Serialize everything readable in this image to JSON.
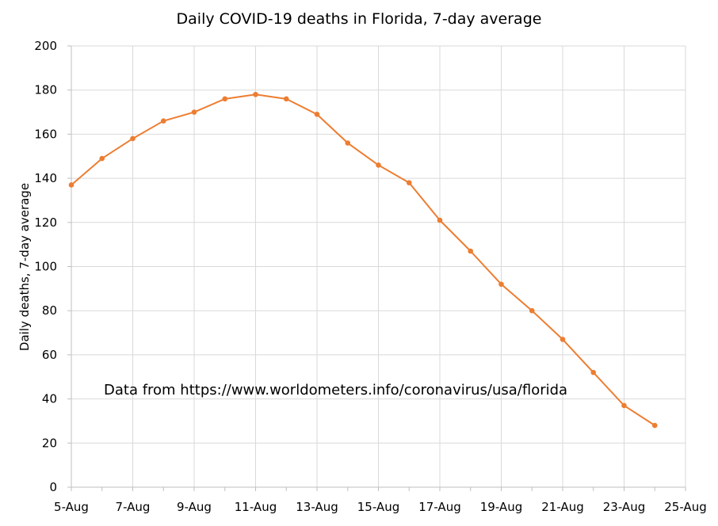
{
  "chart_data": {
    "type": "line",
    "title": "Daily COVID-19 deaths in Florida, 7-day average",
    "xlabel": "",
    "ylabel": "Daily deaths, 7-day average",
    "annotation": "Data from https://www.worldometers.info/coronavirus/usa/florida",
    "x": [
      "5-Aug",
      "6-Aug",
      "7-Aug",
      "8-Aug",
      "9-Aug",
      "10-Aug",
      "11-Aug",
      "12-Aug",
      "13-Aug",
      "14-Aug",
      "15-Aug",
      "16-Aug",
      "17-Aug",
      "18-Aug",
      "19-Aug",
      "20-Aug",
      "21-Aug",
      "22-Aug",
      "23-Aug",
      "24-Aug"
    ],
    "series": [
      {
        "values": [
          137,
          149,
          158,
          166,
          170,
          176,
          178,
          176,
          169,
          156,
          146,
          138,
          121,
          107,
          92,
          80,
          67,
          52,
          37,
          28
        ]
      }
    ],
    "x_tick_labels": [
      "5-Aug",
      "7-Aug",
      "9-Aug",
      "11-Aug",
      "13-Aug",
      "15-Aug",
      "17-Aug",
      "19-Aug",
      "21-Aug",
      "23-Aug",
      "25-Aug"
    ],
    "y_tick_labels": [
      "0",
      "20",
      "40",
      "60",
      "80",
      "100",
      "120",
      "140",
      "160",
      "180",
      "200"
    ],
    "ylim": [
      0,
      200
    ],
    "grid": true,
    "line_color": "#ED7D31",
    "grid_color": "#D9D9D9"
  }
}
